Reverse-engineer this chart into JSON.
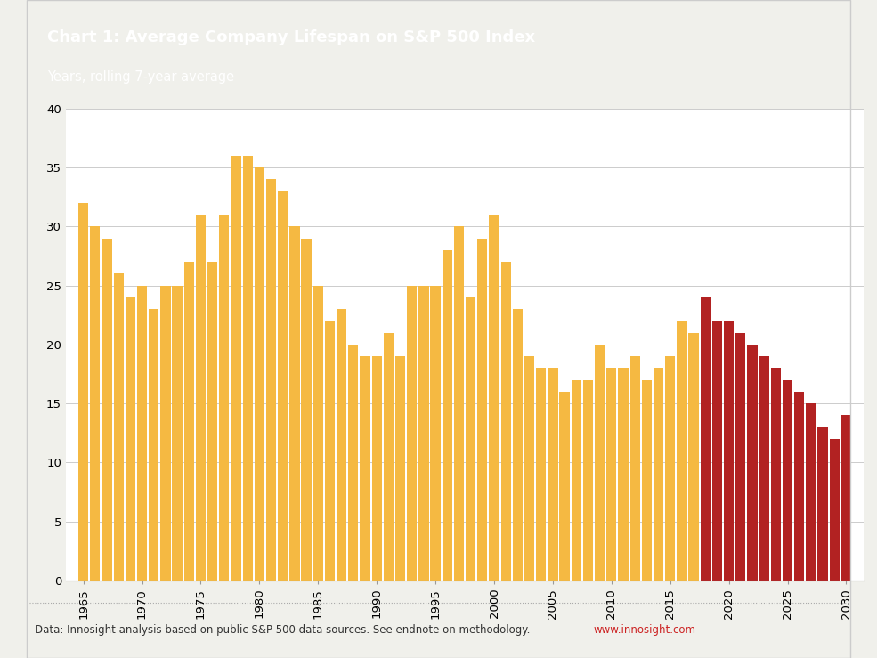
{
  "title_main": "Chart 1: Average Company Lifespan on S&P 500 Index",
  "title_sub": "Years, rolling 7-year average",
  "footer": "Data: Innosight analysis based on public S&P 500 data sources. See endnote on methodology.  ",
  "footer_link": "www.innosight.com",
  "header_bg": "#cc2222",
  "header_text_color": "#ffffff",
  "bg_color": "#f0f0eb",
  "chart_bg": "#ffffff",
  "bar_color_historical": "#f5b942",
  "bar_color_projected": "#b22222",
  "years": [
    1965,
    1966,
    1967,
    1968,
    1969,
    1970,
    1971,
    1972,
    1973,
    1974,
    1975,
    1976,
    1977,
    1978,
    1979,
    1980,
    1981,
    1982,
    1983,
    1984,
    1985,
    1986,
    1987,
    1988,
    1989,
    1990,
    1991,
    1992,
    1993,
    1994,
    1995,
    1996,
    1997,
    1998,
    1999,
    2000,
    2001,
    2002,
    2003,
    2004,
    2005,
    2006,
    2007,
    2008,
    2009,
    2010,
    2011,
    2012,
    2013,
    2014,
    2015,
    2016,
    2017,
    2018,
    2019,
    2020,
    2021,
    2022,
    2023,
    2024,
    2025,
    2026,
    2027,
    2028,
    2029,
    2030
  ],
  "values": [
    32,
    30,
    29,
    26,
    24,
    25,
    23,
    25,
    25,
    27,
    31,
    27,
    31,
    36,
    36,
    35,
    34,
    33,
    30,
    29,
    25,
    22,
    23,
    20,
    19,
    19,
    21,
    19,
    25,
    25,
    25,
    28,
    30,
    24,
    29,
    31,
    27,
    23,
    19,
    18,
    18,
    16,
    17,
    17,
    20,
    18,
    18,
    19,
    17,
    18,
    19,
    22,
    21,
    24,
    22,
    22,
    21,
    20,
    19,
    18,
    17,
    16,
    15,
    13,
    12,
    14
  ],
  "projected_start_year": 2018,
  "ylim": [
    0,
    40
  ],
  "yticks": [
    0,
    5,
    10,
    15,
    20,
    25,
    30,
    35,
    40
  ],
  "xtick_years": [
    1965,
    1970,
    1975,
    1980,
    1985,
    1990,
    1995,
    2000,
    2005,
    2010,
    2015,
    2020,
    2025,
    2030
  ],
  "footer_color": "#333333",
  "footer_link_color": "#cc2222",
  "separator_color": "#aaaaaa"
}
